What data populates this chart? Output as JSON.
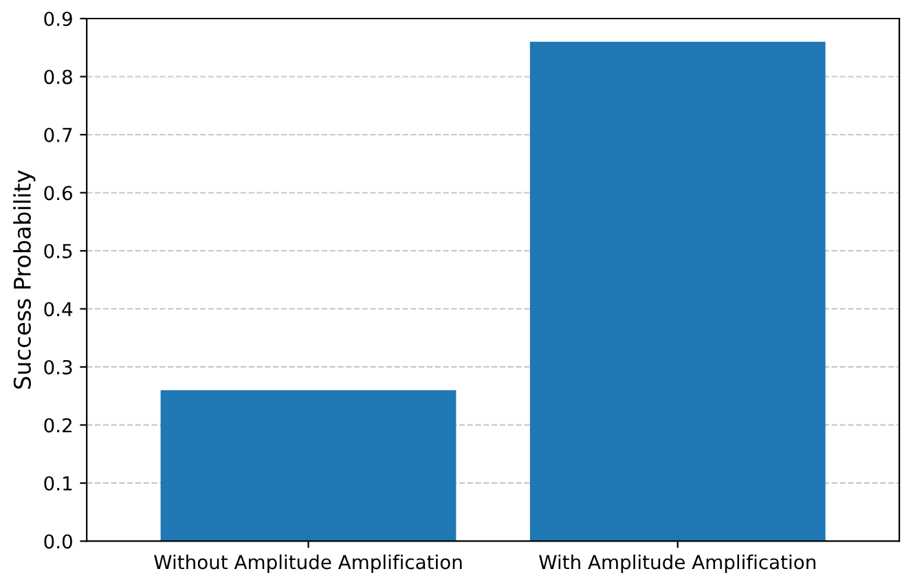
{
  "chart_data": {
    "type": "bar",
    "ylabel": "Success Probability",
    "categories": [
      "Without Amplitude Amplification",
      "With Amplitude Amplification"
    ],
    "values": [
      0.26,
      0.86
    ],
    "color": "#1f77b4",
    "ylim": [
      0,
      0.9
    ],
    "yticks": [
      {
        "value": 0,
        "label": "0.0"
      },
      0.1,
      0.2,
      0.3,
      0.4,
      0.5,
      0.6,
      0.7,
      0.8,
      0.9
    ],
    "grid": "y"
  }
}
